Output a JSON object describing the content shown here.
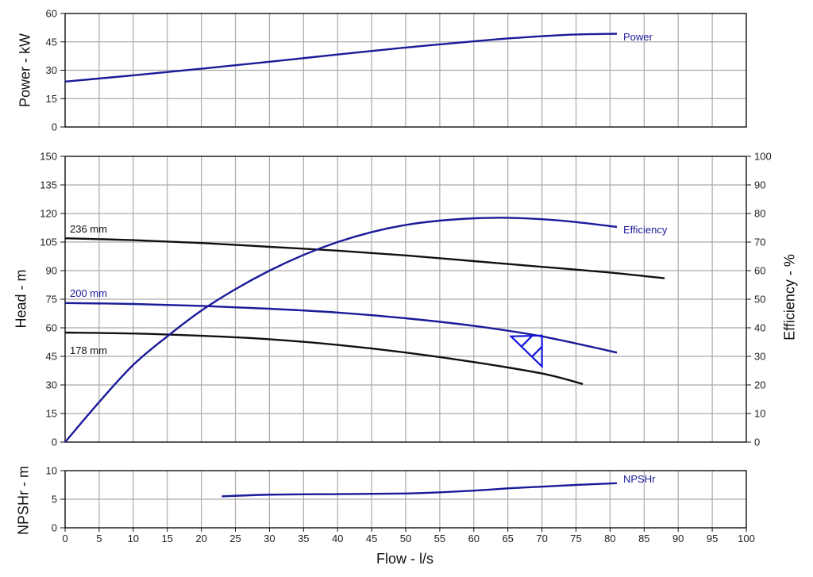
{
  "colors": {
    "blue": "#1a1a9a",
    "black": "#111111",
    "marker": "#1414e0",
    "grid": "#aaaaaa"
  },
  "chart_data": [
    {
      "type": "line",
      "title": "",
      "xlabel": "Flow - l/s",
      "ylabel": "Power - kW",
      "xlim": [
        0,
        100
      ],
      "ylim": [
        0,
        60
      ],
      "yticks": [
        0,
        15,
        30,
        45,
        60
      ],
      "grid": true,
      "series": [
        {
          "name": "Power",
          "x": [
            0,
            10,
            20,
            30,
            40,
            50,
            60,
            65,
            70,
            75,
            81
          ],
          "y": [
            24,
            27.3,
            30.8,
            34.5,
            38.3,
            42,
            45.3,
            46.8,
            48,
            48.9,
            49.3
          ]
        }
      ]
    },
    {
      "type": "line",
      "xlabel": "Flow - l/s",
      "ylabel": "Head - m",
      "y2label": "Efficiency - %",
      "xlim": [
        0,
        100
      ],
      "ylim": [
        0,
        150
      ],
      "y2lim": [
        0,
        100
      ],
      "yticks": [
        0,
        15,
        30,
        45,
        60,
        75,
        90,
        105,
        120,
        135,
        150
      ],
      "y2ticks": [
        0,
        10,
        20,
        30,
        40,
        50,
        60,
        70,
        80,
        90,
        100
      ],
      "grid": true,
      "series": [
        {
          "name": "236 mm",
          "axis": "head",
          "x": [
            0,
            10,
            20,
            30,
            40,
            50,
            60,
            70,
            80,
            88
          ],
          "y": [
            107,
            106,
            104.5,
            102.5,
            100.5,
            98,
            95,
            92,
            89,
            86
          ]
        },
        {
          "name": "200 mm",
          "axis": "head",
          "x": [
            0,
            10,
            20,
            30,
            40,
            50,
            60,
            70,
            81
          ],
          "y": [
            73,
            72.5,
            71.5,
            70,
            68,
            65,
            61,
            55.5,
            47
          ]
        },
        {
          "name": "178 mm",
          "axis": "head",
          "x": [
            0,
            10,
            20,
            30,
            40,
            50,
            60,
            70,
            76
          ],
          "y": [
            57.5,
            57,
            55.8,
            54,
            51,
            47,
            42,
            36,
            30.5
          ]
        },
        {
          "name": "Efficiency",
          "axis": "efficiency",
          "x": [
            0,
            5,
            10,
            15,
            20,
            25,
            30,
            35,
            40,
            45,
            50,
            55,
            60,
            65,
            70,
            75,
            81
          ],
          "y": [
            0,
            14,
            27,
            37,
            46,
            53.5,
            60,
            65.5,
            70,
            73.5,
            76,
            77.5,
            78.3,
            78.5,
            78,
            77,
            75.3
          ]
        }
      ],
      "annotations": [
        {
          "text": "236 mm",
          "x": 1,
          "y": 110
        },
        {
          "text": "200 mm",
          "x": 1,
          "y": 76
        },
        {
          "text": "178 mm",
          "x": 1,
          "y": 44
        },
        {
          "text": "Efficiency",
          "x": 82.5,
          "y": 112
        },
        {
          "text": "Best efficiency point marker",
          "x": 70,
          "y": 55
        }
      ]
    },
    {
      "type": "line",
      "xlabel": "Flow - l/s",
      "ylabel": "NPSHr - m",
      "xlim": [
        0,
        100
      ],
      "ylim": [
        0,
        10
      ],
      "yticks": [
        0,
        5,
        10
      ],
      "xticks": [
        0,
        5,
        10,
        15,
        20,
        25,
        30,
        35,
        40,
        45,
        50,
        55,
        60,
        65,
        70,
        75,
        80,
        85,
        90,
        95,
        100
      ],
      "grid": true,
      "series": [
        {
          "name": "NPSHr",
          "x": [
            23,
            30,
            40,
            50,
            55,
            60,
            65,
            70,
            75,
            81
          ],
          "y": [
            5.5,
            5.8,
            5.9,
            6.0,
            6.2,
            6.5,
            6.9,
            7.2,
            7.5,
            7.8
          ]
        }
      ]
    }
  ],
  "labels": {
    "power_axis": "Power - kW",
    "head_axis": "Head - m",
    "efficiency_axis": "Efficiency - %",
    "npsh_axis": "NPSHr - m",
    "flow_axis": "Flow - l/s",
    "power_curve": "Power",
    "efficiency_curve": "Efficiency",
    "npsh_curve": "NPSHr",
    "d236": "236 mm",
    "d200": "200 mm",
    "d178": "178 mm"
  }
}
